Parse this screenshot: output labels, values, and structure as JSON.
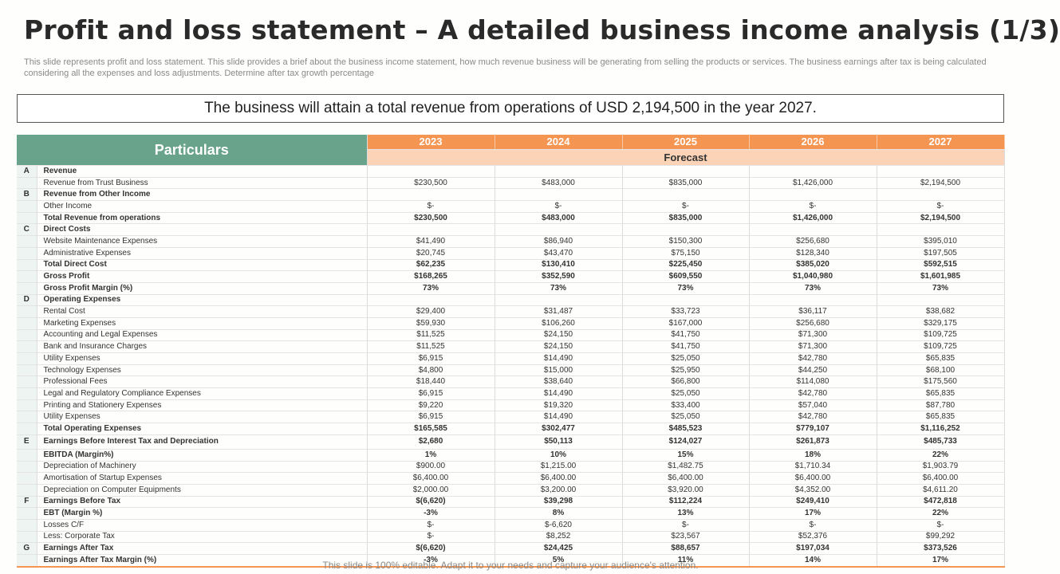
{
  "title": "Profit and loss statement – A detailed business income analysis (1/3)",
  "description": "This slide represents profit and loss statement. This slide provides a brief about the business income statement, how much revenue business will be generating from selling the products or services. The business earnings after tax is being calculated considering all the expenses and loss adjustments. Determine after tax growth percentage",
  "callout": "The business will attain a total revenue from operations of USD 2,194,500 in the year 2027.",
  "table": {
    "header": "Particulars",
    "years": [
      "2023",
      "2024",
      "2025",
      "2026",
      "2027"
    ],
    "forecast_label": "Forecast",
    "rows": [
      {
        "code": "A",
        "label": "Revenue",
        "values": [
          "",
          "",
          "",
          "",
          ""
        ],
        "bold": true
      },
      {
        "code": "",
        "label": "Revenue from Trust Business",
        "values": [
          "$230,500",
          "$483,000",
          "$835,000",
          "$1,426,000",
          "$2,194,500"
        ],
        "bold": false
      },
      {
        "code": "B",
        "label": "Revenue from Other Income",
        "values": [
          "",
          "",
          "",
          "",
          ""
        ],
        "bold": true
      },
      {
        "code": "",
        "label": "Other Income",
        "values": [
          "$-",
          "$-",
          "$-",
          "$-",
          "$-"
        ],
        "bold": false
      },
      {
        "code": "",
        "label": "Total Revenue from operations",
        "values": [
          "$230,500",
          "$483,000",
          "$835,000",
          "$1,426,000",
          "$2,194,500"
        ],
        "bold": true
      },
      {
        "code": "C",
        "label": "Direct Costs",
        "values": [
          "",
          "",
          "",
          "",
          ""
        ],
        "bold": true
      },
      {
        "code": "",
        "label": "Website Maintenance Expenses",
        "values": [
          "$41,490",
          "$86,940",
          "$150,300",
          "$256,680",
          "$395,010"
        ],
        "bold": false
      },
      {
        "code": "",
        "label": "Administrative Expenses",
        "values": [
          "$20,745",
          "$43,470",
          "$75,150",
          "$128,340",
          "$197,505"
        ],
        "bold": false
      },
      {
        "code": "",
        "label": " Total Direct Cost",
        "values": [
          "$62,235",
          "$130,410",
          "$225,450",
          "$385,020",
          "$592,515"
        ],
        "bold": true
      },
      {
        "code": "",
        "label": "Gross Profit",
        "values": [
          "$168,265",
          "$352,590",
          "$609,550",
          "$1,040,980",
          "$1,601,985"
        ],
        "bold": true
      },
      {
        "code": "",
        "label": "Gross Profit Margin (%)",
        "values": [
          "73%",
          "73%",
          "73%",
          "73%",
          "73%"
        ],
        "bold": true
      },
      {
        "code": "D",
        "label": "Operating Expenses",
        "values": [
          "",
          "",
          "",
          "",
          ""
        ],
        "bold": true
      },
      {
        "code": "",
        "label": "Rental Cost",
        "values": [
          "$29,400",
          "$31,487",
          "$33,723",
          "$36,117",
          "$38,682"
        ],
        "bold": false
      },
      {
        "code": "",
        "label": "Marketing Expenses",
        "values": [
          "$59,930",
          "$106,260",
          "$167,000",
          "$256,680",
          "$329,175"
        ],
        "bold": false
      },
      {
        "code": "",
        "label": "Accounting and Legal Expenses",
        "values": [
          "$11,525",
          "$24,150",
          "$41,750",
          "$71,300",
          "$109,725"
        ],
        "bold": false
      },
      {
        "code": "",
        "label": "Bank and Insurance Charges",
        "values": [
          "$11,525",
          "$24,150",
          "$41,750",
          "$71,300",
          "$109,725"
        ],
        "bold": false
      },
      {
        "code": "",
        "label": "Utility Expenses",
        "values": [
          "$6,915",
          "$14,490",
          "$25,050",
          "$42,780",
          "$65,835"
        ],
        "bold": false
      },
      {
        "code": "",
        "label": "Technology Expenses",
        "values": [
          "$4,800",
          "$15,000",
          "$25,950",
          "$44,250",
          "$68,100"
        ],
        "bold": false
      },
      {
        "code": "",
        "label": "Professional Fees",
        "values": [
          "$18,440",
          "$38,640",
          "$66,800",
          "$114,080",
          "$175,560"
        ],
        "bold": false
      },
      {
        "code": "",
        "label": "Legal and Regulatory Compliance Expenses",
        "values": [
          "$6,915",
          "$14,490",
          "$25,050",
          "$42,780",
          "$65,835"
        ],
        "bold": false
      },
      {
        "code": "",
        "label": "Printing and Stationery Expenses",
        "values": [
          "$9,220",
          "$19,320",
          "$33,400",
          "$57,040",
          "$87,780"
        ],
        "bold": false
      },
      {
        "code": "",
        "label": "Utility Expenses",
        "values": [
          "$6,915",
          "$14,490",
          "$25,050",
          "$42,780",
          "$65,835"
        ],
        "bold": false
      },
      {
        "code": "",
        "label": "Total Operating Expenses",
        "values": [
          "$165,585",
          "$302,477",
          "$485,523",
          "$779,107",
          "$1,116,252"
        ],
        "bold": true
      },
      {
        "code": "E",
        "label": "Earnings Before Interest Tax and Depreciation",
        "values": [
          "$2,680",
          "$50,113",
          "$124,027",
          "$261,873",
          "$485,733"
        ],
        "bold": true,
        "tall": true
      },
      {
        "code": "",
        "label": "EBITDA (Margin%)",
        "values": [
          "1%",
          "10%",
          "15%",
          "18%",
          "22%"
        ],
        "bold": true
      },
      {
        "code": "",
        "label": "Depreciation of Machinery",
        "values": [
          "$900.00",
          "$1,215.00",
          "$1,482.75",
          "$1,710.34",
          "$1,903.79"
        ],
        "bold": false
      },
      {
        "code": "",
        "label": "Amortisation of Startup Expenses",
        "values": [
          "$6,400.00",
          "$6,400.00",
          "$6,400.00",
          "$6,400.00",
          "$6,400.00"
        ],
        "bold": false
      },
      {
        "code": "",
        "label": "Depreciation on Computer Equipments",
        "values": [
          "$2,000.00",
          "$3,200.00",
          "$3,920.00",
          "$4,352.00",
          "$4,611.20"
        ],
        "bold": false
      },
      {
        "code": "F",
        "label": "Earnings Before Tax",
        "values": [
          "$(6,620)",
          "$39,298",
          "$112,224",
          "$249,410",
          "$472,818"
        ],
        "bold": true
      },
      {
        "code": "",
        "label": "EBT (Margin %)",
        "values": [
          "-3%",
          "8%",
          "13%",
          "17%",
          "22%"
        ],
        "bold": true
      },
      {
        "code": "",
        "label": "Losses C/F",
        "values": [
          "$-",
          "$-6,620",
          "$-",
          "$-",
          "$-"
        ],
        "bold": false
      },
      {
        "code": "",
        "label": "Less: Corporate Tax",
        "values": [
          "$-",
          "$8,252",
          "$23,567",
          "$52,376",
          "$99,292"
        ],
        "bold": false
      },
      {
        "code": "G",
        "label": "Earnings After Tax",
        "values": [
          "$(6,620)",
          "$24,425",
          "$88,657",
          "$197,034",
          "$373,526"
        ],
        "bold": true
      },
      {
        "code": "",
        "label": "Earnings After Tax Margin (%)",
        "values": [
          "-3%",
          "5%",
          "11%",
          "14%",
          "17%"
        ],
        "bold": true
      }
    ]
  },
  "footer": "This slide is 100% editable. Adapt it to your needs and capture your audience's attention.",
  "colors": {
    "particulars_header": "#6aa38c",
    "year_header": "#f59552",
    "forecast_header": "#fcd3b6"
  }
}
